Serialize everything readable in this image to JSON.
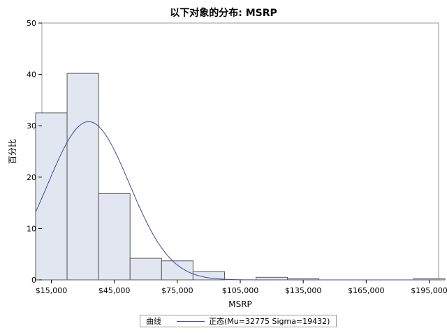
{
  "chart_data": {
    "type": "bar",
    "title": "以下对象的分布: MSRP",
    "xlabel": "MSRP",
    "ylabel": "百分比",
    "ylim": [
      0,
      50
    ],
    "yticks": [
      "0",
      "10",
      "20",
      "30",
      "40",
      "50"
    ],
    "xlim": [
      10500,
      199500
    ],
    "xtick_values": [
      15000,
      45000,
      75000,
      105000,
      135000,
      165000,
      195000
    ],
    "xticks": [
      "$15,000",
      "$45,000",
      "$75,000",
      "$105,000",
      "$135,000",
      "$165,000",
      "$195,000"
    ],
    "bin_width": 15000,
    "bin_centers": [
      15000,
      30000,
      45000,
      60000,
      75000,
      90000,
      105000,
      120000,
      135000,
      150000,
      165000,
      180000,
      195000
    ],
    "values": [
      32.5,
      40.2,
      16.8,
      4.2,
      3.7,
      1.6,
      0,
      0.5,
      0.2,
      0,
      0,
      0,
      0.2
    ],
    "curve": {
      "type": "normal",
      "mu": 32775,
      "sigma": 19432
    },
    "grid": false,
    "legend_position": "bottom",
    "colors": {
      "bar_fill": "#e1e6f0",
      "bar_stroke": "#5a5a5a",
      "curve": "#3b4a9b",
      "frame": "#9a9a9a"
    }
  },
  "legend": {
    "title": "曲线",
    "entry": "正态(Mu=32775 Sigma=19432)"
  }
}
